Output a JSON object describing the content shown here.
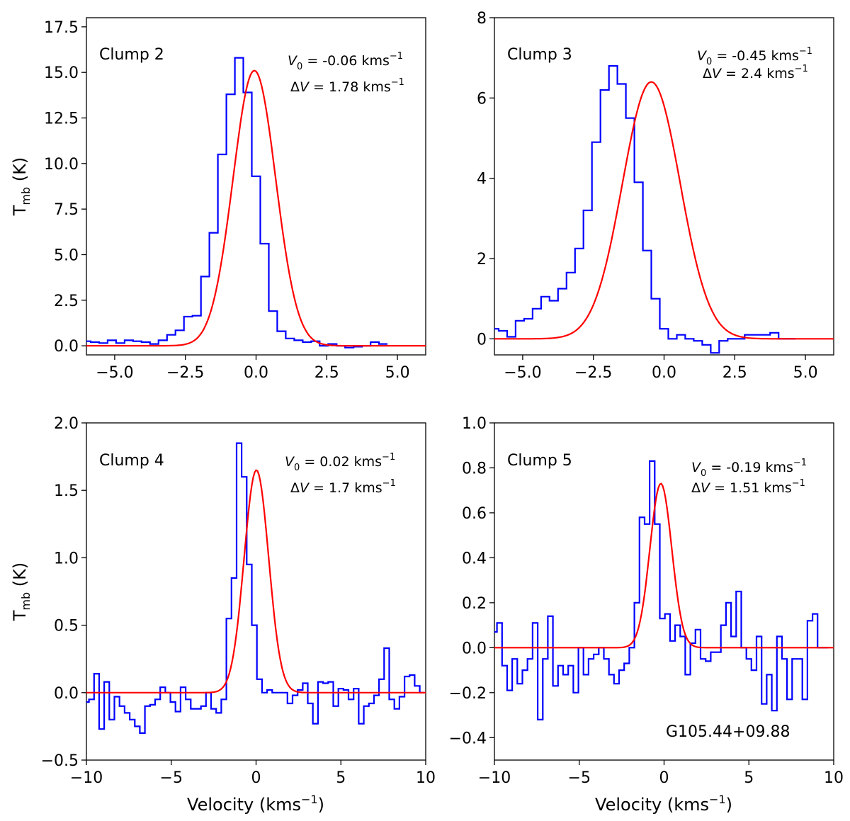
{
  "chart_data": {
    "source_label": "G105.44+09.88",
    "xlabel": "Velocity (kms",
    "xlabel_sup": "−1",
    "xlabel_end": ")",
    "ylabel_main": "T",
    "ylabel_sub": "mb",
    "ylabel_end": " (K)",
    "panels": [
      {
        "type": "line",
        "name": "Clump 2",
        "xlim": [
          -6,
          6
        ],
        "ylim": [
          -0.5,
          18
        ],
        "xticks": [
          -5,
          -2.5,
          0,
          2.5,
          5
        ],
        "xtick_labels": [
          "−5.0",
          "−2.5",
          "0.0",
          "2.5",
          "5.0"
        ],
        "yticks": [
          0,
          2.5,
          5,
          7.5,
          10,
          12.5,
          15,
          17.5
        ],
        "ytick_labels": [
          "0.0",
          "2.5",
          "5.0",
          "7.5",
          "10.0",
          "12.5",
          "15.0",
          "17.5"
        ],
        "show_xlabel": false,
        "show_ylabel": true,
        "fit": {
          "v0": -0.06,
          "dv": 1.78,
          "amp": 15.1
        },
        "v0_text": "-0.06",
        "dv_text": "1.78",
        "series": [
          {
            "name": "observed",
            "style": "step",
            "color": "#0000ff",
            "x_start": -6.0,
            "x_step": 0.3,
            "values": [
              0.25,
              0.2,
              0.15,
              0.3,
              0.15,
              0.3,
              0.25,
              0.2,
              0.1,
              0.3,
              0.6,
              0.85,
              1.6,
              1.65,
              3.8,
              6.2,
              10.5,
              13.8,
              15.8,
              13.9,
              9.3,
              5.6,
              1.9,
              0.8,
              0.4,
              0.3,
              0.2,
              0.25,
              0.0,
              0.1,
              0.0,
              -0.1,
              -0.05,
              0.0,
              0.2,
              0.1
            ]
          },
          {
            "name": "gaussian fit",
            "style": "line",
            "color": "#ff0000"
          }
        ]
      },
      {
        "type": "line",
        "name": "Clump 3",
        "xlim": [
          -6,
          6
        ],
        "ylim": [
          -0.4,
          8
        ],
        "xticks": [
          -5,
          -2.5,
          0,
          2.5,
          5
        ],
        "xtick_labels": [
          "−5.0",
          "−2.5",
          "0.0",
          "2.5",
          "5.0"
        ],
        "yticks": [
          0,
          2,
          4,
          6,
          8
        ],
        "ytick_labels": [
          "0",
          "2",
          "4",
          "6",
          "8"
        ],
        "show_xlabel": false,
        "show_ylabel": false,
        "fit": {
          "v0": -0.45,
          "dv": 2.4,
          "amp": 6.4
        },
        "v0_text": "-0.45",
        "dv_text": "2.4",
        "series": [
          {
            "name": "observed",
            "style": "step",
            "color": "#0000ff",
            "x_start": -6.0,
            "x_step": 0.3,
            "values": [
              0.25,
              0.2,
              0.05,
              0.45,
              0.5,
              0.75,
              1.05,
              0.95,
              1.25,
              1.65,
              2.25,
              3.2,
              4.9,
              6.2,
              6.8,
              6.35,
              5.5,
              3.9,
              2.2,
              1.0,
              0.25,
              0.0,
              0.1,
              0.0,
              -0.05,
              -0.15,
              -0.35,
              -0.05,
              0.0,
              0.0,
              0.1,
              0.1,
              0.1,
              0.15,
              0.0,
              0.0
            ]
          },
          {
            "name": "gaussian fit",
            "style": "line",
            "color": "#ff0000"
          }
        ]
      },
      {
        "type": "line",
        "name": "Clump 4",
        "xlim": [
          -10,
          10
        ],
        "ylim": [
          -0.5,
          2.0
        ],
        "xticks": [
          -10,
          -5,
          0,
          5,
          10
        ],
        "xtick_labels": [
          "−10",
          "−5",
          "0",
          "5",
          "10"
        ],
        "yticks": [
          -0.5,
          0,
          0.5,
          1.0,
          1.5,
          2.0
        ],
        "ytick_labels": [
          "−0.5",
          "0.0",
          "0.5",
          "1.0",
          "1.5",
          "2.0"
        ],
        "show_xlabel": true,
        "show_ylabel": true,
        "fit": {
          "v0": 0.02,
          "dv": 1.7,
          "amp": 1.65
        },
        "v0_text": "0.02",
        "dv_text": "1.7",
        "series": [
          {
            "name": "observed",
            "style": "step",
            "color": "#0000ff",
            "x_start": -10.0,
            "x_step": 0.3,
            "values": [
              -0.07,
              -0.05,
              0.14,
              -0.27,
              0.08,
              -0.2,
              -0.03,
              -0.1,
              -0.15,
              -0.2,
              -0.25,
              -0.3,
              -0.1,
              -0.09,
              -0.05,
              0.04,
              0.0,
              -0.07,
              -0.14,
              0.04,
              -0.05,
              -0.12,
              -0.12,
              -0.1,
              0.0,
              -0.12,
              -0.15,
              -0.05,
              0.55,
              0.85,
              1.85,
              1.6,
              0.95,
              0.5,
              0.1,
              0.0,
              0.02,
              0.0,
              0.0,
              0.0,
              -0.08,
              -0.02,
              0.02,
              0.07,
              -0.08,
              -0.23,
              0.08,
              0.07,
              0.08,
              -0.1,
              0.03,
              0.02,
              -0.05,
              0.03,
              -0.23,
              -0.1,
              -0.08,
              -0.02,
              0.1,
              0.33,
              -0.05,
              -0.12,
              -0.03,
              0.12,
              0.13,
              0.05,
              0.0
            ]
          },
          {
            "name": "gaussian fit",
            "style": "line",
            "color": "#ff0000"
          }
        ]
      },
      {
        "type": "line",
        "name": "Clump 5",
        "xlim": [
          -10,
          10
        ],
        "ylim": [
          -0.5,
          1.0
        ],
        "xticks": [
          -10,
          -5,
          0,
          5,
          10
        ],
        "xtick_labels": [
          "−10",
          "−5",
          "0",
          "5",
          "10"
        ],
        "yticks": [
          -0.4,
          -0.2,
          0,
          0.2,
          0.4,
          0.6,
          0.8,
          1.0
        ],
        "ytick_labels": [
          "−0.4",
          "−0.2",
          "0.0",
          "0.2",
          "0.4",
          "0.6",
          "0.8",
          "1.0"
        ],
        "show_xlabel": true,
        "show_ylabel": false,
        "fit": {
          "v0": -0.19,
          "dv": 1.51,
          "amp": 0.73
        },
        "v0_text": "-0.19",
        "dv_text": "1.51",
        "series": [
          {
            "name": "observed",
            "style": "step",
            "color": "#0000ff",
            "x_start": -10.0,
            "x_step": 0.3,
            "values": [
              0.07,
              0.11,
              -0.08,
              -0.19,
              -0.05,
              -0.16,
              -0.1,
              -0.05,
              0.11,
              -0.32,
              -0.05,
              0.14,
              -0.17,
              -0.08,
              -0.12,
              -0.08,
              -0.2,
              0.0,
              -0.12,
              -0.05,
              -0.03,
              0.0,
              -0.05,
              -0.12,
              -0.16,
              -0.1,
              -0.07,
              0.0,
              0.2,
              0.58,
              0.55,
              0.83,
              0.55,
              0.13,
              0.15,
              0.03,
              0.1,
              0.05,
              -0.12,
              0.02,
              0.08,
              -0.05,
              -0.06,
              -0.02,
              -0.02,
              0.1,
              0.2,
              0.05,
              0.25,
              0.0,
              -0.05,
              -0.1,
              0.05,
              -0.25,
              -0.12,
              -0.28,
              0.05,
              -0.05,
              -0.23,
              -0.05,
              -0.05,
              -0.23,
              0.12,
              0.15,
              0.0,
              0.0
            ]
          },
          {
            "name": "gaussian fit",
            "style": "line",
            "color": "#ff0000"
          }
        ]
      }
    ]
  }
}
